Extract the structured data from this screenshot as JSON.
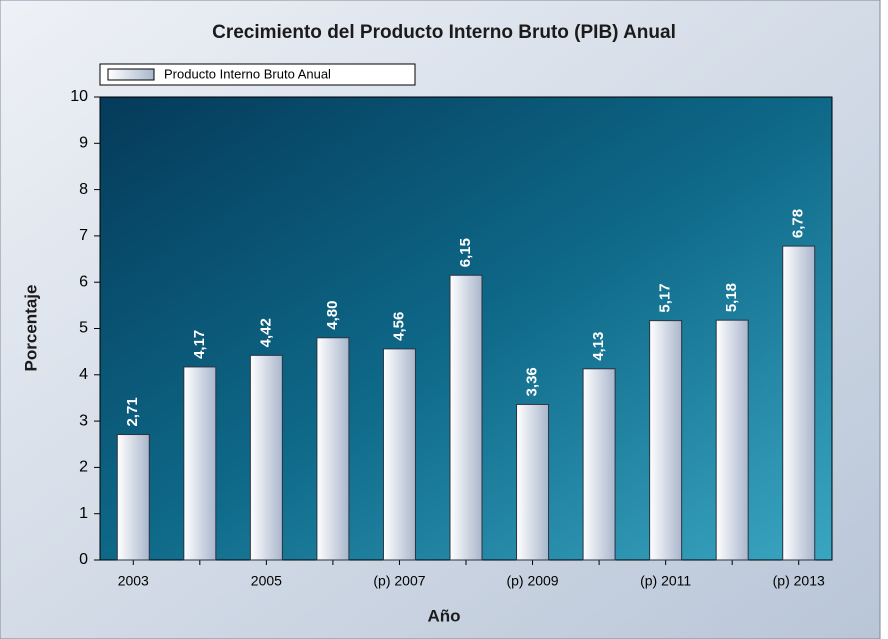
{
  "chart_data": {
    "type": "bar",
    "title": "Crecimiento del Producto Interno Bruto (PIB) Anual",
    "x_label": "Año",
    "y_label": "Porcentaje",
    "categories": [
      "2003",
      null,
      "2005",
      null,
      "(p) 2007",
      null,
      "(p) 2009",
      null,
      "(p) 2011",
      null,
      "(p) 2013"
    ],
    "series": [
      {
        "name": "Producto Interno Bruto Anual",
        "color": "#c8d2e2",
        "values": [
          2.71,
          4.17,
          4.42,
          4.8,
          4.56,
          6.15,
          3.36,
          4.13,
          5.17,
          5.18,
          6.78
        ],
        "value_labels": [
          "2,71",
          "4,17",
          "4,42",
          "4,80",
          "4,56",
          "6,15",
          "3,36",
          "4,13",
          "5,17",
          "5,18",
          "6,78"
        ]
      }
    ],
    "ylim": [
      0,
      10
    ],
    "yticks": [
      0,
      1,
      2,
      3,
      4,
      5,
      6,
      7,
      8,
      9,
      10
    ],
    "legend": "top-left"
  }
}
